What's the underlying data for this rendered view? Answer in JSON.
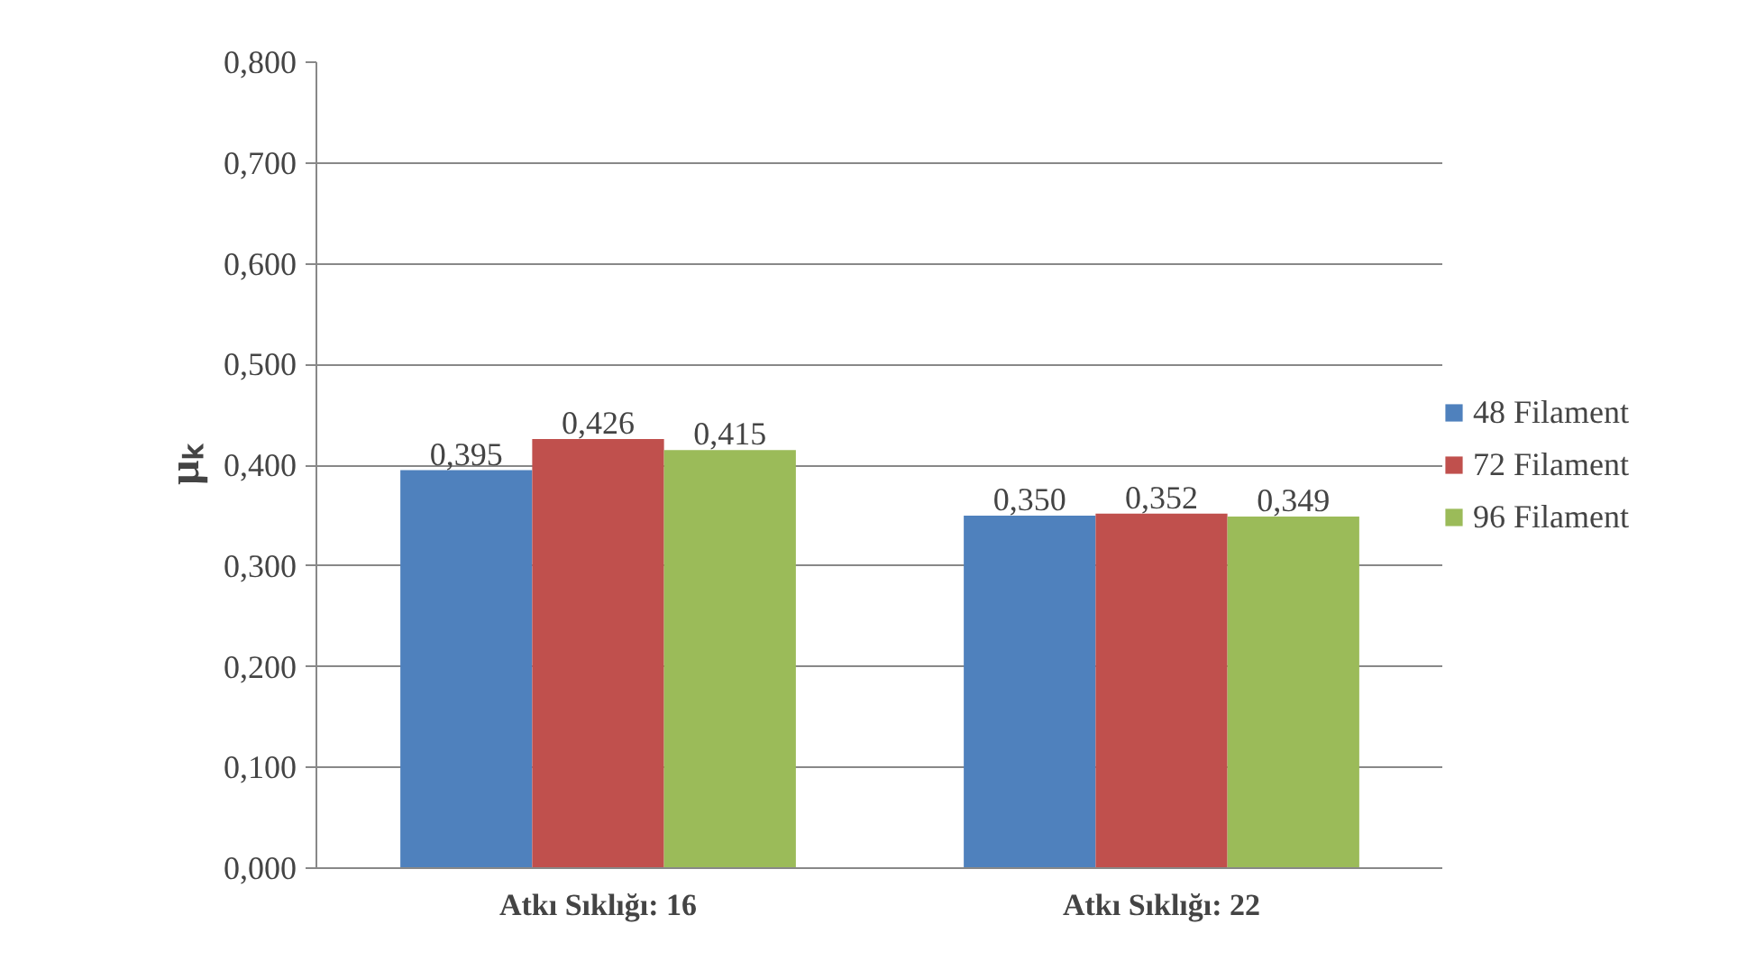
{
  "chart_data": {
    "type": "bar",
    "ylabel": "μₖ",
    "categories": [
      "Atkı Sıklığı: 16",
      "Atkı Sıklığı: 22"
    ],
    "series": [
      {
        "name": "48 Filament",
        "color": "#4f81bd",
        "values": [
          0.395,
          0.35
        ],
        "value_labels": [
          "0,395",
          "0,350"
        ]
      },
      {
        "name": "72 Filament",
        "color": "#c0504d",
        "values": [
          0.426,
          0.352
        ],
        "value_labels": [
          "0,426",
          "0,352"
        ]
      },
      {
        "name": "96 Filament",
        "color": "#9bbb59",
        "values": [
          0.415,
          0.349
        ],
        "value_labels": [
          "0,415",
          "0,349"
        ]
      }
    ],
    "ylim": [
      0,
      0.8
    ],
    "yticks": [
      {
        "value": 0,
        "label": "0,000"
      },
      {
        "value": 0.1,
        "label": "0,100"
      },
      {
        "value": 0.2,
        "label": "0,200"
      },
      {
        "value": 0.3,
        "label": "0,300"
      },
      {
        "value": 0.4,
        "label": "0,400"
      },
      {
        "value": 0.5,
        "label": "0,500"
      },
      {
        "value": 0.6,
        "label": "0,600"
      },
      {
        "value": 0.7,
        "label": "0,700"
      },
      {
        "value": 0.8,
        "label": "0,800"
      }
    ],
    "grid": "y",
    "legend": "right"
  }
}
